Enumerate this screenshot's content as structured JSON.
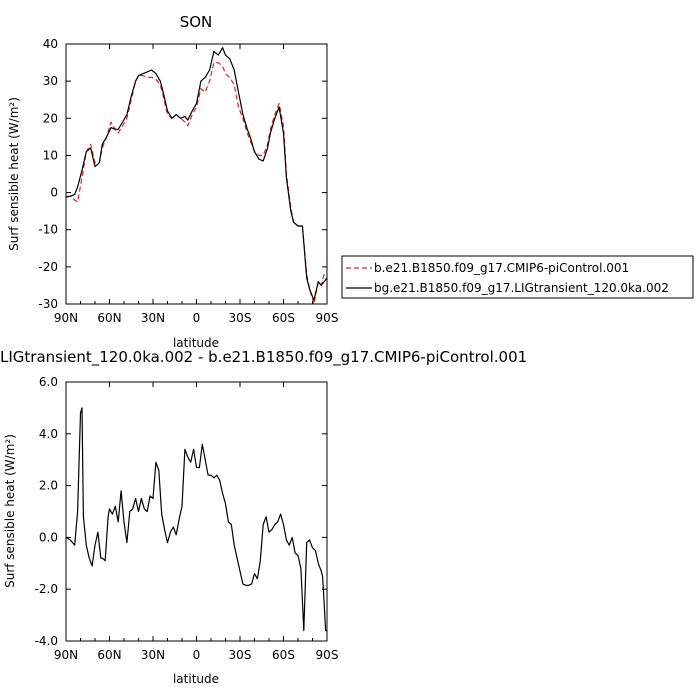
{
  "chart_data": [
    {
      "type": "line",
      "title": "SON",
      "xlabel": "latitude",
      "ylabel": "Surf sensible heat (W/m²)",
      "xlim": [
        90,
        -90
      ],
      "ylim": [
        -30,
        40
      ],
      "xtick_values": [
        90,
        60,
        30,
        0,
        -30,
        -60,
        -90
      ],
      "xtick_labels": [
        "90N",
        "60N",
        "30N",
        "0",
        "30S",
        "60S",
        "90S"
      ],
      "ytick_values": [
        -30,
        -20,
        -10,
        0,
        10,
        20,
        30,
        40
      ],
      "ytick_labels": [
        "-30",
        "-20",
        "-10",
        "0",
        "10",
        "20",
        "30",
        "40"
      ],
      "legend_position": "right",
      "series": [
        {
          "name": "b.e21.B1850.f09_g17.CMIP6-piControl.001",
          "color": "#d62728",
          "dash": "dashed",
          "x": [
            90,
            87,
            84,
            82,
            79,
            76,
            73,
            70,
            67,
            65,
            62,
            59,
            56,
            54,
            51,
            48,
            45,
            42,
            40,
            37,
            34,
            31,
            28,
            25,
            23,
            20,
            17,
            14,
            11,
            8,
            6,
            3,
            0,
            -3,
            -6,
            -9,
            -12,
            -15,
            -18,
            -20,
            -23,
            -26,
            -29,
            -32,
            -35,
            -37,
            -40,
            -43,
            -46,
            -49,
            -51,
            -54,
            -57,
            -60,
            -62,
            -65,
            -67,
            -70,
            -73,
            -76,
            -78,
            -81,
            -84,
            -86,
            -88,
            -90
          ],
          "values": [
            -1,
            -1,
            -2,
            -2.5,
            4,
            11,
            13,
            8,
            8,
            12,
            15,
            19,
            17,
            16,
            18,
            20,
            25,
            30,
            31.5,
            31.5,
            31,
            31,
            30.5,
            29,
            26,
            21,
            20,
            21,
            20,
            19,
            18,
            21,
            23,
            28,
            27,
            30,
            35,
            35,
            34,
            32,
            31,
            29,
            23,
            20,
            16,
            14,
            11,
            10,
            10,
            13,
            17,
            21,
            24,
            18,
            5,
            -4,
            -8,
            -9,
            -9,
            -22,
            -26,
            -30,
            -24,
            -25,
            -22,
            -21
          ]
        },
        {
          "name": "bg.e21.B1850.f09_g17.LIGtransient_120.0ka.002",
          "color": "#000000",
          "dash": "solid",
          "x": [
            90,
            87,
            84,
            82,
            79,
            76,
            73,
            70,
            67,
            65,
            62,
            59,
            56,
            54,
            51,
            48,
            45,
            42,
            40,
            37,
            34,
            31,
            28,
            25,
            23,
            20,
            17,
            14,
            11,
            8,
            6,
            3,
            0,
            -3,
            -6,
            -9,
            -12,
            -15,
            -18,
            -20,
            -23,
            -26,
            -29,
            -32,
            -35,
            -37,
            -40,
            -43,
            -46,
            -49,
            -51,
            -54,
            -57,
            -60,
            -62,
            -65,
            -67,
            -70,
            -73,
            -76,
            -78,
            -81,
            -84,
            -86,
            -88,
            -90
          ],
          "values": [
            -1.2,
            -1,
            -0.5,
            1.5,
            6,
            11,
            12,
            7,
            8,
            13,
            15,
            17.5,
            17,
            17,
            19,
            21,
            26,
            30,
            31.5,
            32,
            32.5,
            33,
            32,
            30,
            27,
            22,
            20,
            21,
            20,
            20.5,
            19.5,
            22,
            24,
            30,
            31,
            33,
            38,
            37,
            39,
            37,
            36,
            33,
            27,
            21,
            17,
            15,
            11,
            9,
            8.5,
            12,
            16,
            20,
            23,
            16,
            4,
            -5,
            -8,
            -9,
            -9,
            -23,
            -26,
            -29,
            -24,
            -25,
            -24,
            -23
          ]
        }
      ]
    },
    {
      "type": "line",
      "title": "LIGtransient_120.0ka.002 - b.e21.B1850.f09_g17.CMIP6-piControl.001",
      "xlabel": "latitude",
      "ylabel": "Surf sensible heat (W/m²)",
      "xlim": [
        90,
        -90
      ],
      "ylim": [
        -4,
        6
      ],
      "xtick_values": [
        90,
        60,
        30,
        0,
        -30,
        -60,
        -90
      ],
      "xtick_labels": [
        "90N",
        "60N",
        "30N",
        "0",
        "30S",
        "60S",
        "90S"
      ],
      "ytick_values": [
        -4,
        -2,
        0,
        2,
        4,
        6
      ],
      "ytick_labels": [
        "-4.0",
        "-2.0",
        "0.0",
        "2.0",
        "4.0",
        "6.0"
      ],
      "series": [
        {
          "color": "#000000",
          "dash": "solid",
          "x": [
            90,
            87,
            84,
            82,
            80,
            79,
            78,
            76,
            74,
            72,
            70,
            68,
            66,
            65,
            63,
            61,
            60,
            58,
            56,
            54,
            52,
            50,
            48,
            46,
            44,
            42,
            40,
            38,
            36,
            34,
            32,
            30,
            28,
            26,
            24,
            22,
            20,
            18,
            16,
            14,
            12,
            10,
            8,
            6,
            4,
            2,
            0,
            -2,
            -4,
            -6,
            -8,
            -10,
            -12,
            -14,
            -16,
            -18,
            -20,
            -22,
            -24,
            -26,
            -28,
            -30,
            -32,
            -34,
            -36,
            -38,
            -40,
            -42,
            -44,
            -46,
            -48,
            -50,
            -52,
            -54,
            -56,
            -58,
            -60,
            -62,
            -64,
            -66,
            -68,
            -70,
            -72,
            -74,
            -76,
            -78,
            -80,
            -82,
            -84,
            -86,
            -87,
            -88,
            -89,
            -90
          ],
          "values": [
            0.0,
            -0.1,
            -0.3,
            1.0,
            4.8,
            5.0,
            0.8,
            -0.3,
            -0.8,
            -1.1,
            -0.3,
            0.2,
            -0.8,
            -0.8,
            -0.9,
            0.8,
            1.1,
            0.9,
            1.2,
            0.6,
            1.8,
            0.6,
            -0.2,
            1.0,
            1.1,
            1.5,
            1.0,
            1.5,
            1.1,
            1.0,
            1.6,
            1.5,
            2.9,
            2.6,
            0.9,
            0.3,
            -0.2,
            0.2,
            0.4,
            0.1,
            0.7,
            1.2,
            3.4,
            3.1,
            2.9,
            3.4,
            2.7,
            2.7,
            3.6,
            3.0,
            2.4,
            2.4,
            2.3,
            2.4,
            2.2,
            1.7,
            1.3,
            0.6,
            0.5,
            -0.3,
            -0.8,
            -1.3,
            -1.8,
            -1.85,
            -1.85,
            -1.8,
            -1.4,
            -1.6,
            -0.9,
            0.5,
            0.8,
            0.2,
            0.3,
            0.5,
            0.6,
            0.9,
            0.5,
            -0.1,
            -0.3,
            0.0,
            -0.6,
            -0.7,
            -1.2,
            -3.6,
            -0.2,
            -0.1,
            -0.4,
            -0.5,
            -1.0,
            -1.3,
            -1.5,
            -2.5,
            -3.6,
            -3.6
          ]
        }
      ]
    }
  ]
}
